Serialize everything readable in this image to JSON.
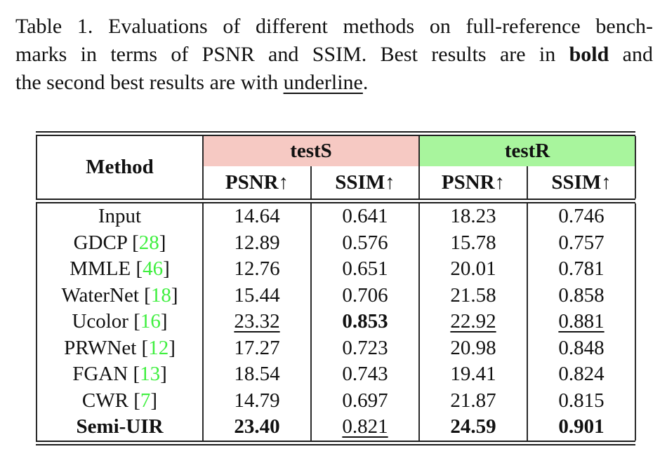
{
  "caption": {
    "line1": "Table 1. Evaluations of different methods on full-reference bench-",
    "line2_pre": "marks in terms of PSNR and SSIM. Best results are in ",
    "line2_bold": "bold",
    "line2_post": " and",
    "line3_pre": "the second best results are with ",
    "line3_underline": "underline",
    "line3_post": "."
  },
  "table": {
    "method_header": "Method",
    "groups": [
      {
        "label": "testS",
        "bg": "#f6c9c3"
      },
      {
        "label": "testR",
        "bg": "#a8f59d"
      }
    ],
    "subheaders": [
      "PSNR↑",
      "SSIM↑",
      "PSNR↑",
      "SSIM↑"
    ],
    "cite_color": "#3fef3f",
    "rule_color": "#1c1c1c",
    "rows": [
      {
        "method": "Input",
        "cite": "",
        "method_bold": false,
        "cells": [
          {
            "v": "14.64",
            "b": false,
            "u": false
          },
          {
            "v": "0.641",
            "b": false,
            "u": false
          },
          {
            "v": "18.23",
            "b": false,
            "u": false
          },
          {
            "v": "0.746",
            "b": false,
            "u": false
          }
        ]
      },
      {
        "method": "GDCP",
        "cite": "28",
        "method_bold": false,
        "cells": [
          {
            "v": "12.89",
            "b": false,
            "u": false
          },
          {
            "v": "0.576",
            "b": false,
            "u": false
          },
          {
            "v": "15.78",
            "b": false,
            "u": false
          },
          {
            "v": "0.757",
            "b": false,
            "u": false
          }
        ]
      },
      {
        "method": "MMLE",
        "cite": "46",
        "method_bold": false,
        "cells": [
          {
            "v": "12.76",
            "b": false,
            "u": false
          },
          {
            "v": "0.651",
            "b": false,
            "u": false
          },
          {
            "v": "20.01",
            "b": false,
            "u": false
          },
          {
            "v": "0.781",
            "b": false,
            "u": false
          }
        ]
      },
      {
        "method": "WaterNet",
        "cite": "18",
        "method_bold": false,
        "cells": [
          {
            "v": "15.44",
            "b": false,
            "u": false
          },
          {
            "v": "0.706",
            "b": false,
            "u": false
          },
          {
            "v": "21.58",
            "b": false,
            "u": false
          },
          {
            "v": "0.858",
            "b": false,
            "u": false
          }
        ]
      },
      {
        "method": "Ucolor",
        "cite": "16",
        "method_bold": false,
        "cells": [
          {
            "v": "23.32",
            "b": false,
            "u": true
          },
          {
            "v": "0.853",
            "b": true,
            "u": false
          },
          {
            "v": "22.92",
            "b": false,
            "u": true
          },
          {
            "v": "0.881",
            "b": false,
            "u": true
          }
        ]
      },
      {
        "method": "PRWNet",
        "cite": "12",
        "method_bold": false,
        "cells": [
          {
            "v": "17.27",
            "b": false,
            "u": false
          },
          {
            "v": "0.723",
            "b": false,
            "u": false
          },
          {
            "v": "20.98",
            "b": false,
            "u": false
          },
          {
            "v": "0.848",
            "b": false,
            "u": false
          }
        ]
      },
      {
        "method": "FGAN",
        "cite": "13",
        "method_bold": false,
        "cells": [
          {
            "v": "18.54",
            "b": false,
            "u": false
          },
          {
            "v": "0.743",
            "b": false,
            "u": false
          },
          {
            "v": "19.41",
            "b": false,
            "u": false
          },
          {
            "v": "0.824",
            "b": false,
            "u": false
          }
        ]
      },
      {
        "method": "CWR",
        "cite": "7",
        "method_bold": false,
        "cells": [
          {
            "v": "14.79",
            "b": false,
            "u": false
          },
          {
            "v": "0.697",
            "b": false,
            "u": false
          },
          {
            "v": "21.87",
            "b": false,
            "u": false
          },
          {
            "v": "0.815",
            "b": false,
            "u": false
          }
        ]
      },
      {
        "method": "Semi-UIR",
        "cite": "",
        "method_bold": true,
        "cells": [
          {
            "v": "23.40",
            "b": true,
            "u": false
          },
          {
            "v": "0.821",
            "b": false,
            "u": true
          },
          {
            "v": "24.59",
            "b": true,
            "u": false
          },
          {
            "v": "0.901",
            "b": true,
            "u": false
          }
        ]
      }
    ]
  }
}
